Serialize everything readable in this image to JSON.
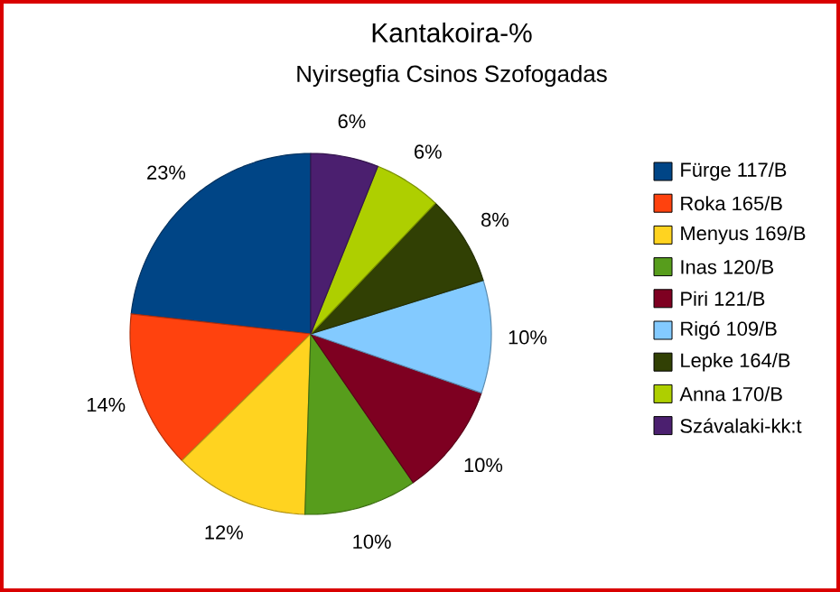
{
  "chart_data": {
    "type": "pie",
    "title": "Kantakoira-%",
    "subtitle": "Nyirsegfia Csinos Szofogadas",
    "categories": [
      "Fürge 117/B",
      "Roka 165/B",
      "Menyus 169/B",
      "Inas 120/B",
      "Piri 121/B",
      "Rigó 109/B",
      "Lepke 164/B",
      "Anna 170/B",
      "Szávalaki-kk:t"
    ],
    "values": [
      23,
      14,
      12,
      10,
      10,
      10,
      8,
      6,
      6
    ],
    "colors": [
      "#004586",
      "#ff420e",
      "#ffd320",
      "#579d1c",
      "#7e0021",
      "#83caff",
      "#314004",
      "#aecf00",
      "#4b1f6f"
    ],
    "value_labels": [
      "23%",
      "14%",
      "12%",
      "10%",
      "10%",
      "10%",
      "8%",
      "6%",
      "6%"
    ],
    "legend": "right"
  }
}
